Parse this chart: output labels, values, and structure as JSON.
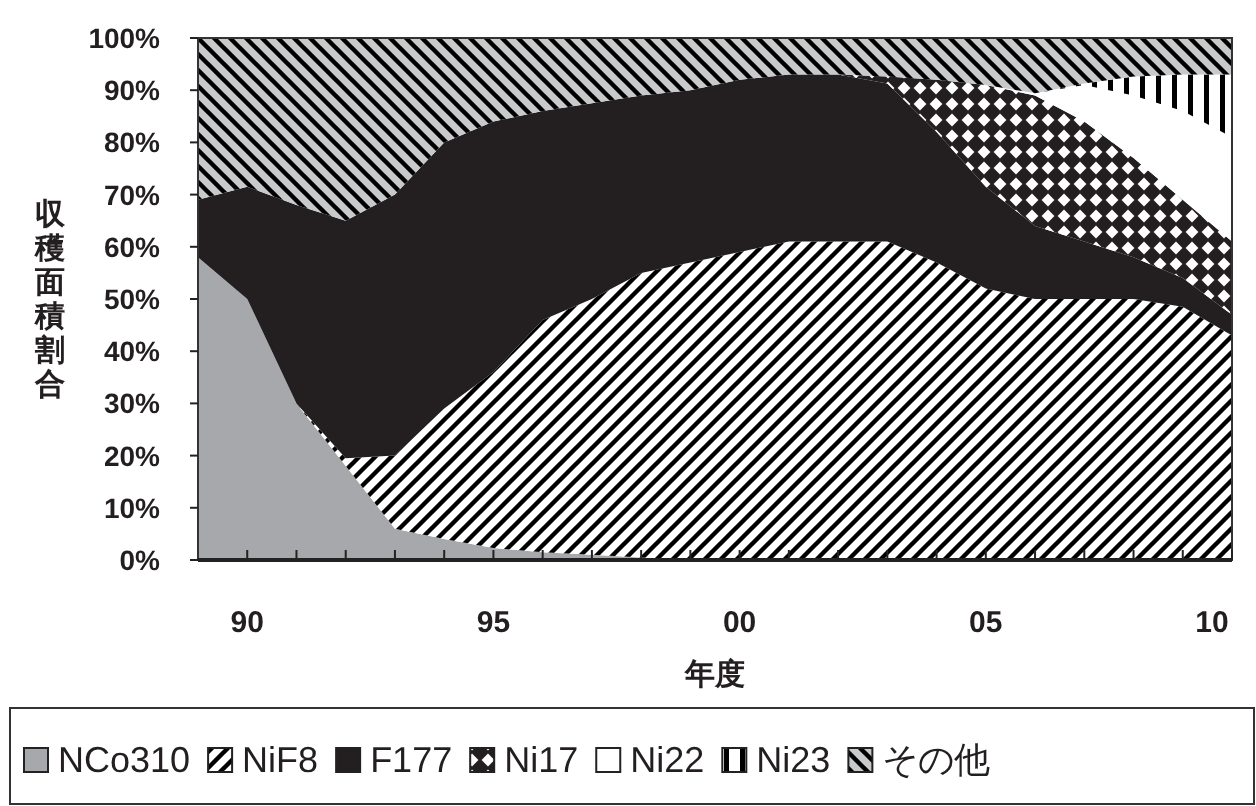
{
  "chart_data": {
    "type": "area",
    "stacked": true,
    "ylabel": "収穫面積割合",
    "xlabel": "年度",
    "x": [
      1989,
      1990,
      1991,
      1992,
      1993,
      1994,
      1995,
      1996,
      1997,
      1998,
      1999,
      2000,
      2001,
      2002,
      2003,
      2004,
      2005,
      2006,
      2007,
      2008,
      2009,
      2010
    ],
    "xlim": [
      1989,
      2010
    ],
    "xticks": [
      {
        "value": 1990,
        "label": "90"
      },
      {
        "value": 1991,
        "label": null
      },
      {
        "value": 1992,
        "label": null
      },
      {
        "value": 1993,
        "label": null
      },
      {
        "value": 1994,
        "label": null
      },
      {
        "value": 1995,
        "label": "95"
      },
      {
        "value": 1996,
        "label": null
      },
      {
        "value": 1997,
        "label": null
      },
      {
        "value": 1998,
        "label": null
      },
      {
        "value": 1999,
        "label": null
      },
      {
        "value": 2000,
        "label": "00"
      },
      {
        "value": 2001,
        "label": null
      },
      {
        "value": 2002,
        "label": null
      },
      {
        "value": 2003,
        "label": null
      },
      {
        "value": 2004,
        "label": null
      },
      {
        "value": 2005,
        "label": "05"
      },
      {
        "value": 2006,
        "label": null
      },
      {
        "value": 2007,
        "label": null
      },
      {
        "value": 2008,
        "label": null
      },
      {
        "value": 2009,
        "label": null
      },
      {
        "value": 2010,
        "label": "10"
      }
    ],
    "ylim": [
      0,
      100
    ],
    "yticks": [
      {
        "value": 0,
        "label": "0%"
      },
      {
        "value": 10,
        "label": "10%"
      },
      {
        "value": 20,
        "label": "20%"
      },
      {
        "value": 30,
        "label": "30%"
      },
      {
        "value": 40,
        "label": "40%"
      },
      {
        "value": 50,
        "label": "50%"
      },
      {
        "value": 60,
        "label": "60%"
      },
      {
        "value": 70,
        "label": "70%"
      },
      {
        "value": 80,
        "label": "80%"
      },
      {
        "value": 90,
        "label": "90%"
      },
      {
        "value": 100,
        "label": "100%"
      }
    ],
    "grid": false,
    "legend": "bottom",
    "series": [
      {
        "name": "NCo310",
        "color": "#a6a8ab",
        "values": [
          58,
          50,
          30,
          18,
          6,
          4,
          2.3,
          1.5,
          1,
          0.5,
          0,
          0,
          0,
          0,
          0,
          0,
          0,
          0,
          0,
          0,
          0,
          0
        ]
      },
      {
        "name": "NiF8",
        "color": "#ffffff",
        "values": [
          0,
          0,
          0,
          1.5,
          14,
          25,
          33.7,
          44.5,
          49,
          54.5,
          57,
          59,
          61,
          61,
          61,
          57,
          52,
          50,
          50,
          50,
          48.5,
          43
        ]
      },
      {
        "name": "F177",
        "color": "#231f20",
        "values": [
          11,
          21.5,
          38,
          45.5,
          50,
          51,
          48,
          40,
          37.5,
          34,
          33,
          33,
          32,
          32,
          30.3,
          25,
          19.5,
          14,
          11,
          8,
          5.5,
          4
        ]
      },
      {
        "name": "Ni17",
        "color": "#231f20",
        "values": [
          0,
          0,
          0,
          0,
          0,
          0,
          0,
          0,
          0,
          0,
          0,
          0,
          0,
          0,
          1.3,
          10,
          19.5,
          25,
          23,
          19,
          15,
          14
        ]
      },
      {
        "name": "Ni22",
        "color": "#ffffff",
        "values": [
          0,
          0,
          0,
          0,
          0,
          0,
          0,
          0,
          0,
          0,
          0,
          0,
          0,
          0,
          0,
          0,
          0,
          0.4,
          7,
          12,
          17,
          20
        ]
      },
      {
        "name": "Ni23",
        "color": "#ffffff",
        "values": [
          0,
          0,
          0,
          0,
          0,
          0,
          0,
          0,
          0,
          0,
          0,
          0,
          0,
          0,
          0,
          0,
          0,
          0,
          0.3,
          3.6,
          7,
          12
        ]
      },
      {
        "name": "その他",
        "color": "#c8c9cb",
        "values": [
          31,
          28.5,
          32,
          35,
          30,
          20,
          16,
          14,
          12.5,
          11,
          10,
          8,
          7,
          7,
          7.4,
          8,
          9,
          10.6,
          8.7,
          7.4,
          7,
          7
        ]
      }
    ]
  }
}
